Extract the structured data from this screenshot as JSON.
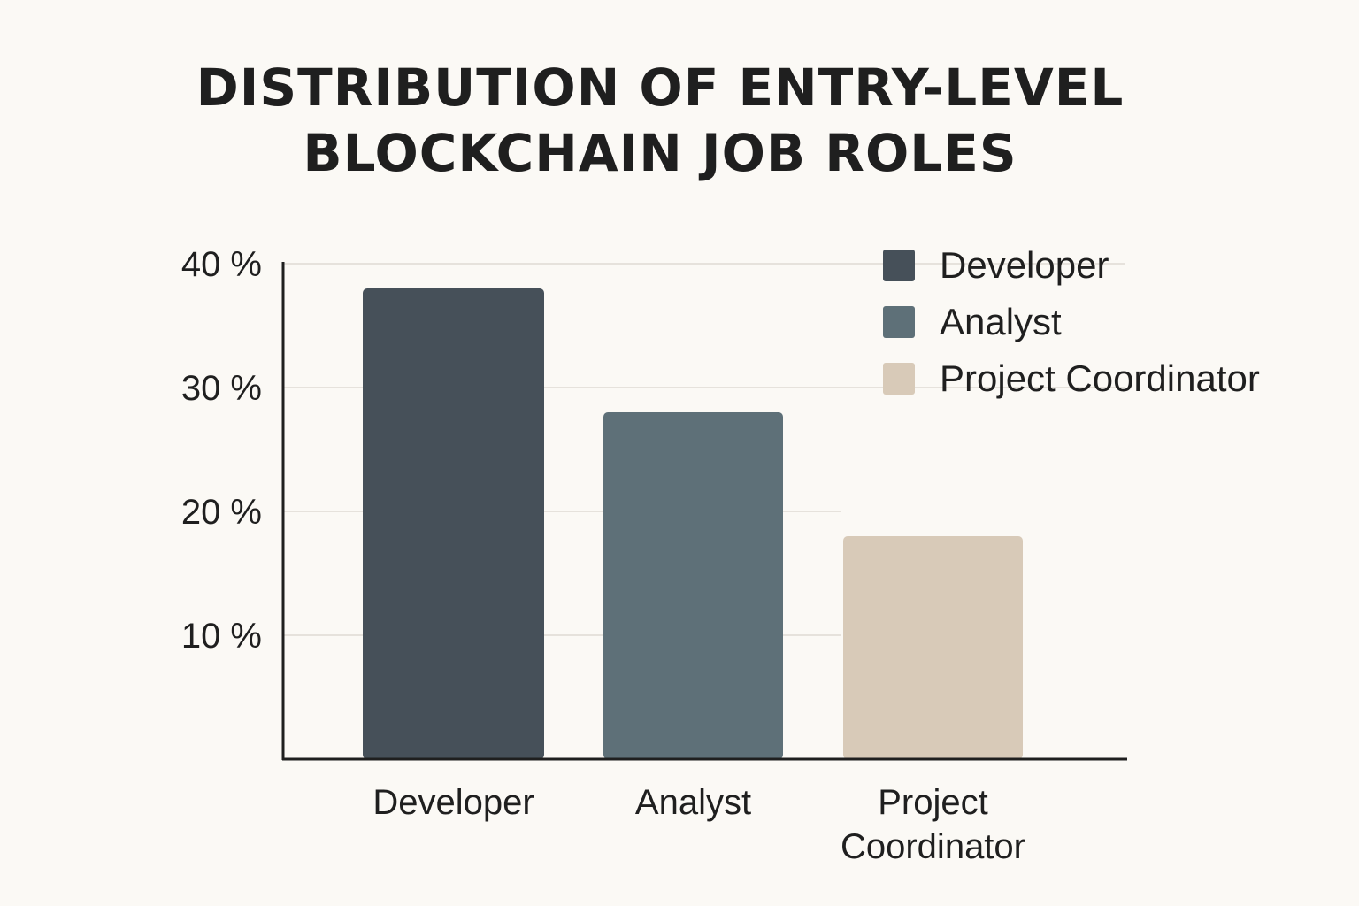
{
  "chart_data": {
    "type": "bar",
    "title_lines": [
      "DISTRIBUTION OF ENTRY-LEVEL",
      "BLOCKCHAIN JOB ROLES"
    ],
    "categories": [
      "Developer",
      "Analyst",
      "Project Coordinator"
    ],
    "category_label_lines": [
      [
        "Developer"
      ],
      [
        "Analyst"
      ],
      [
        "Project",
        "Coordinator"
      ]
    ],
    "values": [
      38,
      28,
      18
    ],
    "colors": [
      "#465059",
      "#5e7078",
      "#d8cab8"
    ],
    "yticks": [
      {
        "value": 10,
        "label": "10 %"
      },
      {
        "value": 20,
        "label": "20 %"
      },
      {
        "value": 30,
        "label": "30 %"
      },
      {
        "value": 40,
        "label": "40 %"
      }
    ],
    "ylim": [
      0,
      40
    ],
    "grid": true,
    "legend": {
      "placement": "top-right",
      "entries": [
        {
          "label": "Developer",
          "color": "#465059"
        },
        {
          "label": "Analyst",
          "color": "#5e7078"
        },
        {
          "label": "Project Coordinator",
          "color": "#d8cab8"
        }
      ]
    }
  }
}
